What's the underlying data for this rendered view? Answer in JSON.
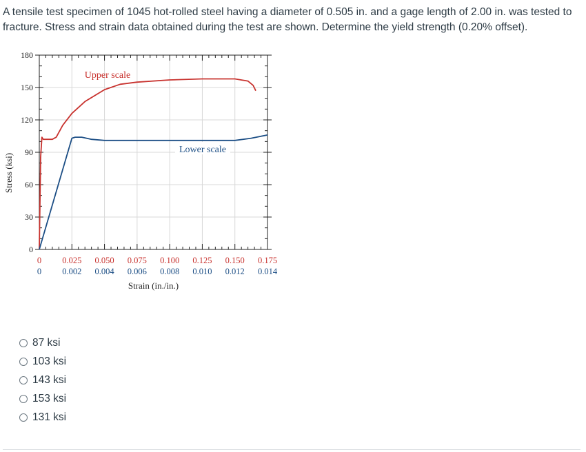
{
  "question": {
    "text": "A tensile test specimen of 1045 hot-rolled steel having a diameter of 0.505 in. and a gage length of 2.00 in. was tested to fracture. Stress and strain data obtained during the test are shown. Determine the yield strength (0.20% offset)."
  },
  "colors": {
    "upper": "#c8322e",
    "lower": "#1c4e85",
    "axis": "#222222",
    "text": "#2d3b45"
  },
  "chart_data": {
    "type": "line",
    "ylabel": "Stress (ksi)",
    "xlabel": "Strain (in./in.)",
    "ylim": [
      0,
      180
    ],
    "y_ticks": [
      "0",
      "30",
      "60",
      "90",
      "120",
      "150",
      "180"
    ],
    "x_ticks_upper": [
      "0",
      "0.025",
      "0.050",
      "0.075",
      "0.100",
      "0.125",
      "0.150",
      "0.175"
    ],
    "x_ticks_lower": [
      "0",
      "0.002",
      "0.004",
      "0.006",
      "0.008",
      "0.010",
      "0.012",
      "0.014"
    ],
    "xlim_upper": [
      0,
      0.175
    ],
    "xlim_lower": [
      0,
      0.014
    ],
    "grid": true,
    "annotations": {
      "upper": "Upper scale",
      "lower": "Lower scale"
    },
    "series": [
      {
        "scale": "upper",
        "x": [
          0,
          0.001,
          0.002,
          0.003,
          0.006,
          0.01,
          0.013,
          0.018,
          0.025,
          0.035,
          0.05,
          0.062,
          0.075,
          0.1,
          0.125,
          0.15,
          0.16,
          0.164,
          0.166
        ],
        "y": [
          0,
          85,
          104,
          102,
          102,
          102,
          104,
          115,
          126,
          137,
          148,
          153,
          155,
          157,
          158,
          158,
          156,
          152,
          147
        ]
      },
      {
        "scale": "lower",
        "x": [
          0,
          0.002,
          0.0022,
          0.0026,
          0.0032,
          0.004,
          0.006,
          0.008,
          0.01,
          0.012,
          0.013,
          0.014
        ],
        "y": [
          0,
          103,
          104,
          104,
          102,
          101,
          101,
          101,
          101,
          101,
          103,
          106
        ]
      }
    ]
  },
  "answers": [
    {
      "label": "87 ksi"
    },
    {
      "label": "103 ksi"
    },
    {
      "label": "143 ksi"
    },
    {
      "label": "153 ksi"
    },
    {
      "label": "131 ksi"
    }
  ]
}
